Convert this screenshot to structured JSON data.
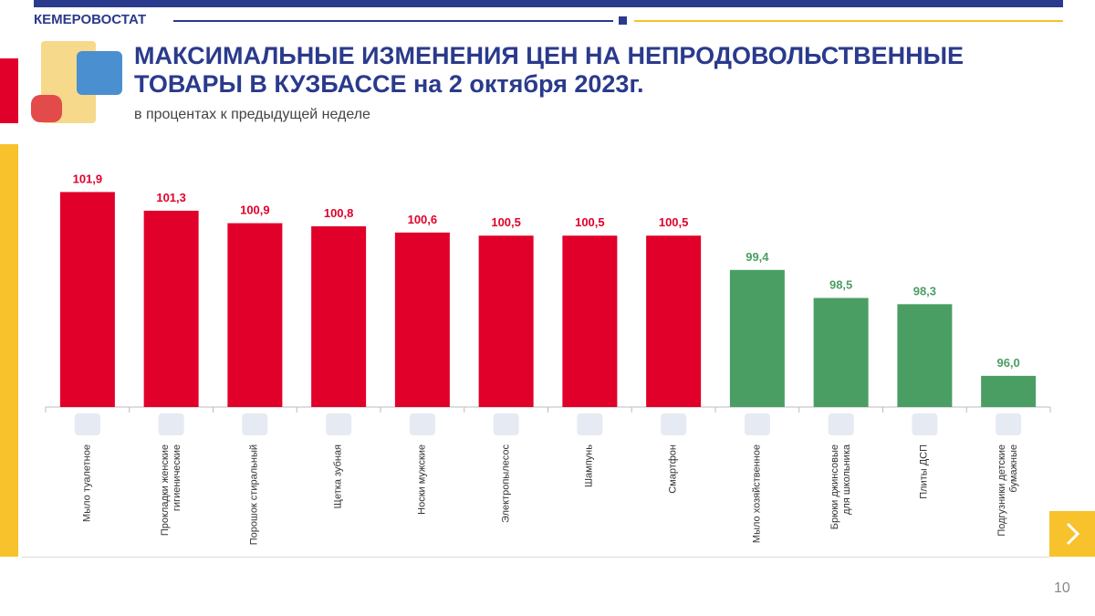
{
  "header": {
    "org": "КЕМЕРОВОСТАТ",
    "page_number": "10"
  },
  "chart_data": {
    "type": "bar",
    "title": "МАКСИМАЛЬНЫЕ ИЗМЕНЕНИЯ ЦЕН НА НЕПРОДОВОЛЬСТВЕННЫЕ ТОВАРЫ В КУЗБАССЕ на 2 октября 2023г.",
    "subtitle": "в процентах к предыдущей неделе",
    "categories": [
      "Мыло туалетное",
      "Прокладки женские\nгигиенические",
      "Порошок стиральный",
      "Щетка зубная",
      "Носки мужские",
      "Электропылесос",
      "Шампунь",
      "Смартфон",
      "Мыло хозяйственное",
      "Брюки джинсовые\nдля школьника",
      "Плиты ДСП",
      "Подгузники детские\nбумажные"
    ],
    "values": [
      101.9,
      101.3,
      100.9,
      100.8,
      100.6,
      100.5,
      100.5,
      100.5,
      99.4,
      98.5,
      98.3,
      96.0
    ],
    "value_labels": [
      "101,9",
      "101,3",
      "100,9",
      "100,8",
      "100,6",
      "100,5",
      "100,5",
      "100,5",
      "99,4",
      "98,5",
      "98,3",
      "96,0"
    ],
    "colors": [
      "#e1002a",
      "#e1002a",
      "#e1002a",
      "#e1002a",
      "#e1002a",
      "#e1002a",
      "#e1002a",
      "#e1002a",
      "#4a9e64",
      "#4a9e64",
      "#4a9e64",
      "#4a9e64"
    ],
    "ylim": [
      95,
      102
    ]
  }
}
